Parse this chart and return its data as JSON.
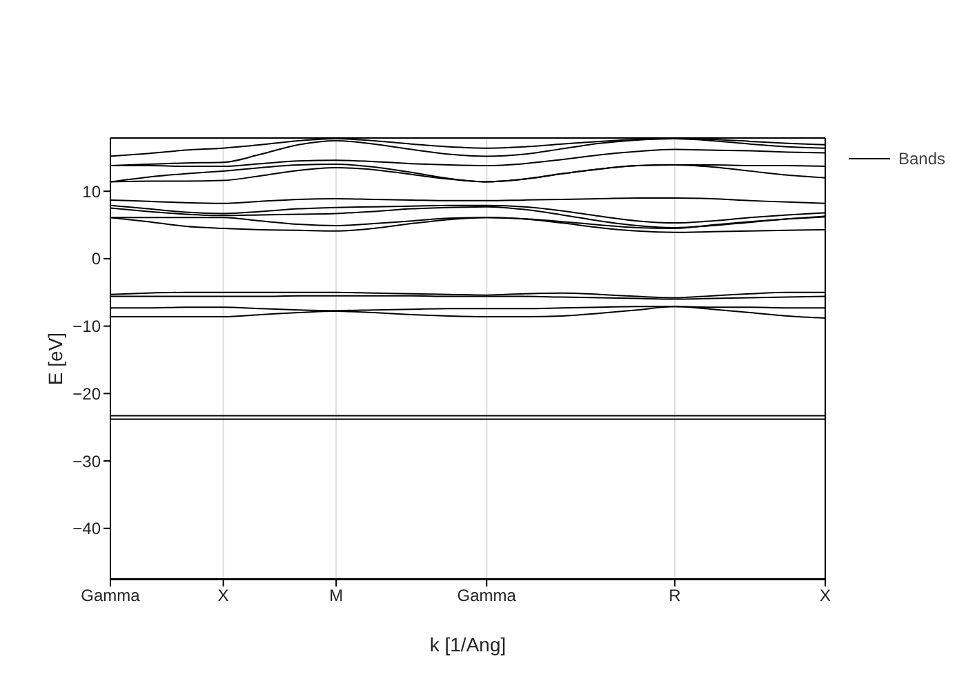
{
  "chart_data": {
    "type": "line",
    "xlabel": "k [1/Ang]",
    "ylabel": "E [eV]",
    "categories": [
      "Gamma",
      null,
      null,
      "X",
      null,
      null,
      "M",
      null,
      null,
      null,
      "Gamma",
      null,
      null,
      null,
      null,
      "R",
      null,
      null,
      null,
      "X"
    ],
    "ylim": [
      -47.6,
      17.9
    ],
    "yticks": [
      -40,
      -30,
      -20,
      -10,
      0,
      10
    ],
    "grid": "x",
    "legend": "top right",
    "marker": "none",
    "line_style": "solid",
    "series": [
      {
        "name": "Bands",
        "color": "#000000",
        "values": [
          -47.5,
          -47.5,
          -47.5,
          -47.5,
          -47.5,
          -47.5,
          -47.5,
          -47.5,
          -47.5,
          -47.5,
          -47.5,
          -47.5,
          -47.5,
          -47.5,
          -47.5,
          -47.5,
          -47.5,
          -47.5,
          -47.5,
          -47.5
        ]
      },
      {
        "color": "#000000",
        "values": [
          -23.8,
          -23.8,
          -23.8,
          -23.8,
          -23.8,
          -23.8,
          -23.8,
          -23.8,
          -23.8,
          -23.8,
          -23.8,
          -23.8,
          -23.8,
          -23.8,
          -23.8,
          -23.8,
          -23.8,
          -23.8,
          -23.8,
          -23.8
        ]
      },
      {
        "color": "#000000",
        "values": [
          -23.3,
          -23.3,
          -23.3,
          -23.3,
          -23.3,
          -23.3,
          -23.3,
          -23.3,
          -23.3,
          -23.3,
          -23.3,
          -23.3,
          -23.3,
          -23.3,
          -23.3,
          -23.3,
          -23.3,
          -23.3,
          -23.3,
          -23.3
        ]
      },
      {
        "color": "#000000",
        "values": [
          -8.6,
          -8.6,
          -8.6,
          -8.6,
          -8.3,
          -8.0,
          -7.8,
          -8.0,
          -8.3,
          -8.5,
          -8.6,
          -8.6,
          -8.5,
          -8.1,
          -7.6,
          -7.1,
          -7.5,
          -8.0,
          -8.5,
          -8.8
        ]
      },
      {
        "color": "#000000",
        "values": [
          -7.3,
          -7.3,
          -7.2,
          -7.2,
          -7.4,
          -7.6,
          -7.7,
          -7.6,
          -7.5,
          -7.4,
          -7.4,
          -7.4,
          -7.3,
          -7.2,
          -7.1,
          -7.1,
          -7.2,
          -7.2,
          -7.3,
          -7.3
        ]
      },
      {
        "color": "#000000",
        "values": [
          -5.6,
          -5.6,
          -5.6,
          -5.6,
          -5.6,
          -5.5,
          -5.5,
          -5.5,
          -5.5,
          -5.6,
          -5.6,
          -5.6,
          -5.7,
          -5.8,
          -5.9,
          -6.0,
          -5.9,
          -5.8,
          -5.7,
          -5.6
        ]
      },
      {
        "color": "#000000",
        "values": [
          -5.3,
          -5.1,
          -5.0,
          -5.0,
          -5.0,
          -5.0,
          -5.0,
          -5.1,
          -5.2,
          -5.3,
          -5.4,
          -5.2,
          -5.1,
          -5.3,
          -5.6,
          -5.8,
          -5.5,
          -5.2,
          -5.0,
          -5.0
        ]
      },
      {
        "color": "#000000",
        "values": [
          6.1,
          5.5,
          4.8,
          4.5,
          4.3,
          4.2,
          4.1,
          4.5,
          5.2,
          5.8,
          6.1,
          5.9,
          5.3,
          4.6,
          4.1,
          3.9,
          4.0,
          4.1,
          4.2,
          4.3
        ]
      },
      {
        "color": "#000000",
        "values": [
          6.1,
          6.1,
          6.1,
          6.1,
          5.6,
          5.1,
          4.9,
          5.2,
          5.6,
          6.0,
          6.1,
          5.9,
          5.5,
          5.0,
          4.6,
          4.5,
          5.0,
          5.5,
          5.9,
          6.2
        ]
      },
      {
        "color": "#000000",
        "values": [
          7.5,
          7.0,
          6.6,
          6.4,
          6.5,
          6.6,
          6.7,
          7.0,
          7.4,
          7.6,
          7.7,
          7.3,
          6.5,
          5.6,
          4.9,
          4.6,
          4.9,
          5.4,
          5.9,
          6.3
        ]
      },
      {
        "color": "#000000",
        "values": [
          7.9,
          7.4,
          6.9,
          6.7,
          7.0,
          7.4,
          7.6,
          7.7,
          7.8,
          7.9,
          7.9,
          7.7,
          7.1,
          6.3,
          5.6,
          5.3,
          5.6,
          6.1,
          6.5,
          6.8
        ]
      },
      {
        "color": "#000000",
        "values": [
          8.7,
          8.5,
          8.3,
          8.2,
          8.5,
          8.8,
          8.9,
          8.8,
          8.7,
          8.6,
          8.6,
          8.7,
          8.8,
          8.9,
          9.0,
          9.0,
          8.9,
          8.6,
          8.4,
          8.2
        ]
      },
      {
        "color": "#000000",
        "values": [
          11.4,
          11.5,
          11.5,
          11.6,
          12.3,
          13.1,
          13.5,
          13.2,
          12.5,
          11.8,
          11.4,
          11.8,
          12.6,
          13.3,
          13.8,
          13.9,
          13.6,
          13.0,
          12.4,
          12.0
        ]
      },
      {
        "color": "#000000",
        "values": [
          11.4,
          12.1,
          12.6,
          13.0,
          13.5,
          13.9,
          14.0,
          13.6,
          12.8,
          11.9,
          11.4,
          11.8,
          12.6,
          13.3,
          13.8,
          13.9,
          13.9,
          13.8,
          13.8,
          13.7
        ]
      },
      {
        "color": "#000000",
        "values": [
          13.8,
          13.8,
          13.7,
          13.7,
          14.1,
          14.5,
          14.6,
          14.4,
          14.1,
          13.9,
          13.8,
          14.1,
          14.7,
          15.4,
          15.9,
          16.2,
          16.1,
          16.0,
          15.8,
          15.7
        ]
      },
      {
        "color": "#000000",
        "values": [
          13.8,
          14.0,
          14.2,
          14.3,
          15.5,
          16.9,
          17.5,
          17.0,
          16.2,
          15.5,
          15.2,
          15.5,
          16.3,
          17.1,
          17.6,
          17.8,
          17.5,
          17.0,
          16.6,
          16.4
        ]
      },
      {
        "color": "#000000",
        "values": [
          15.2,
          15.6,
          16.1,
          16.4,
          16.9,
          17.5,
          17.8,
          17.5,
          17.0,
          16.6,
          16.4,
          16.6,
          17.0,
          17.4,
          17.7,
          17.8,
          17.7,
          17.4,
          17.1,
          16.9
        ]
      }
    ]
  }
}
